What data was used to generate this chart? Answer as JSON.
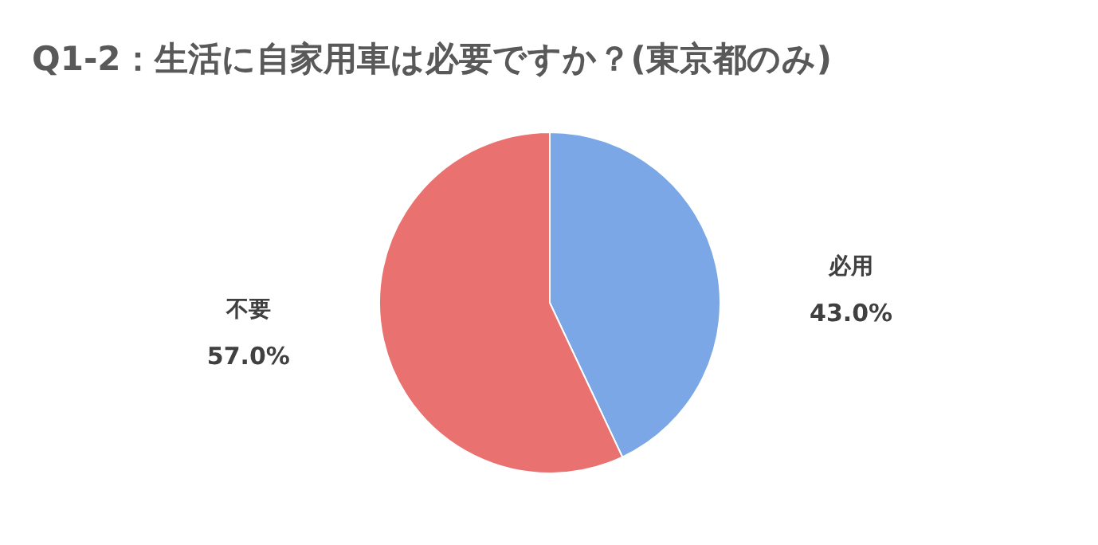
{
  "chart_data": {
    "type": "pie",
    "title": "Q1-2：生活に自家用車は必要ですか？(東京都のみ)",
    "categories": [
      "必用",
      "不要"
    ],
    "values": [
      43.0,
      57.0
    ],
    "colors": [
      "#7ba7e6",
      "#e9716f"
    ],
    "value_labels": [
      "43.0%",
      "57.0%"
    ]
  }
}
